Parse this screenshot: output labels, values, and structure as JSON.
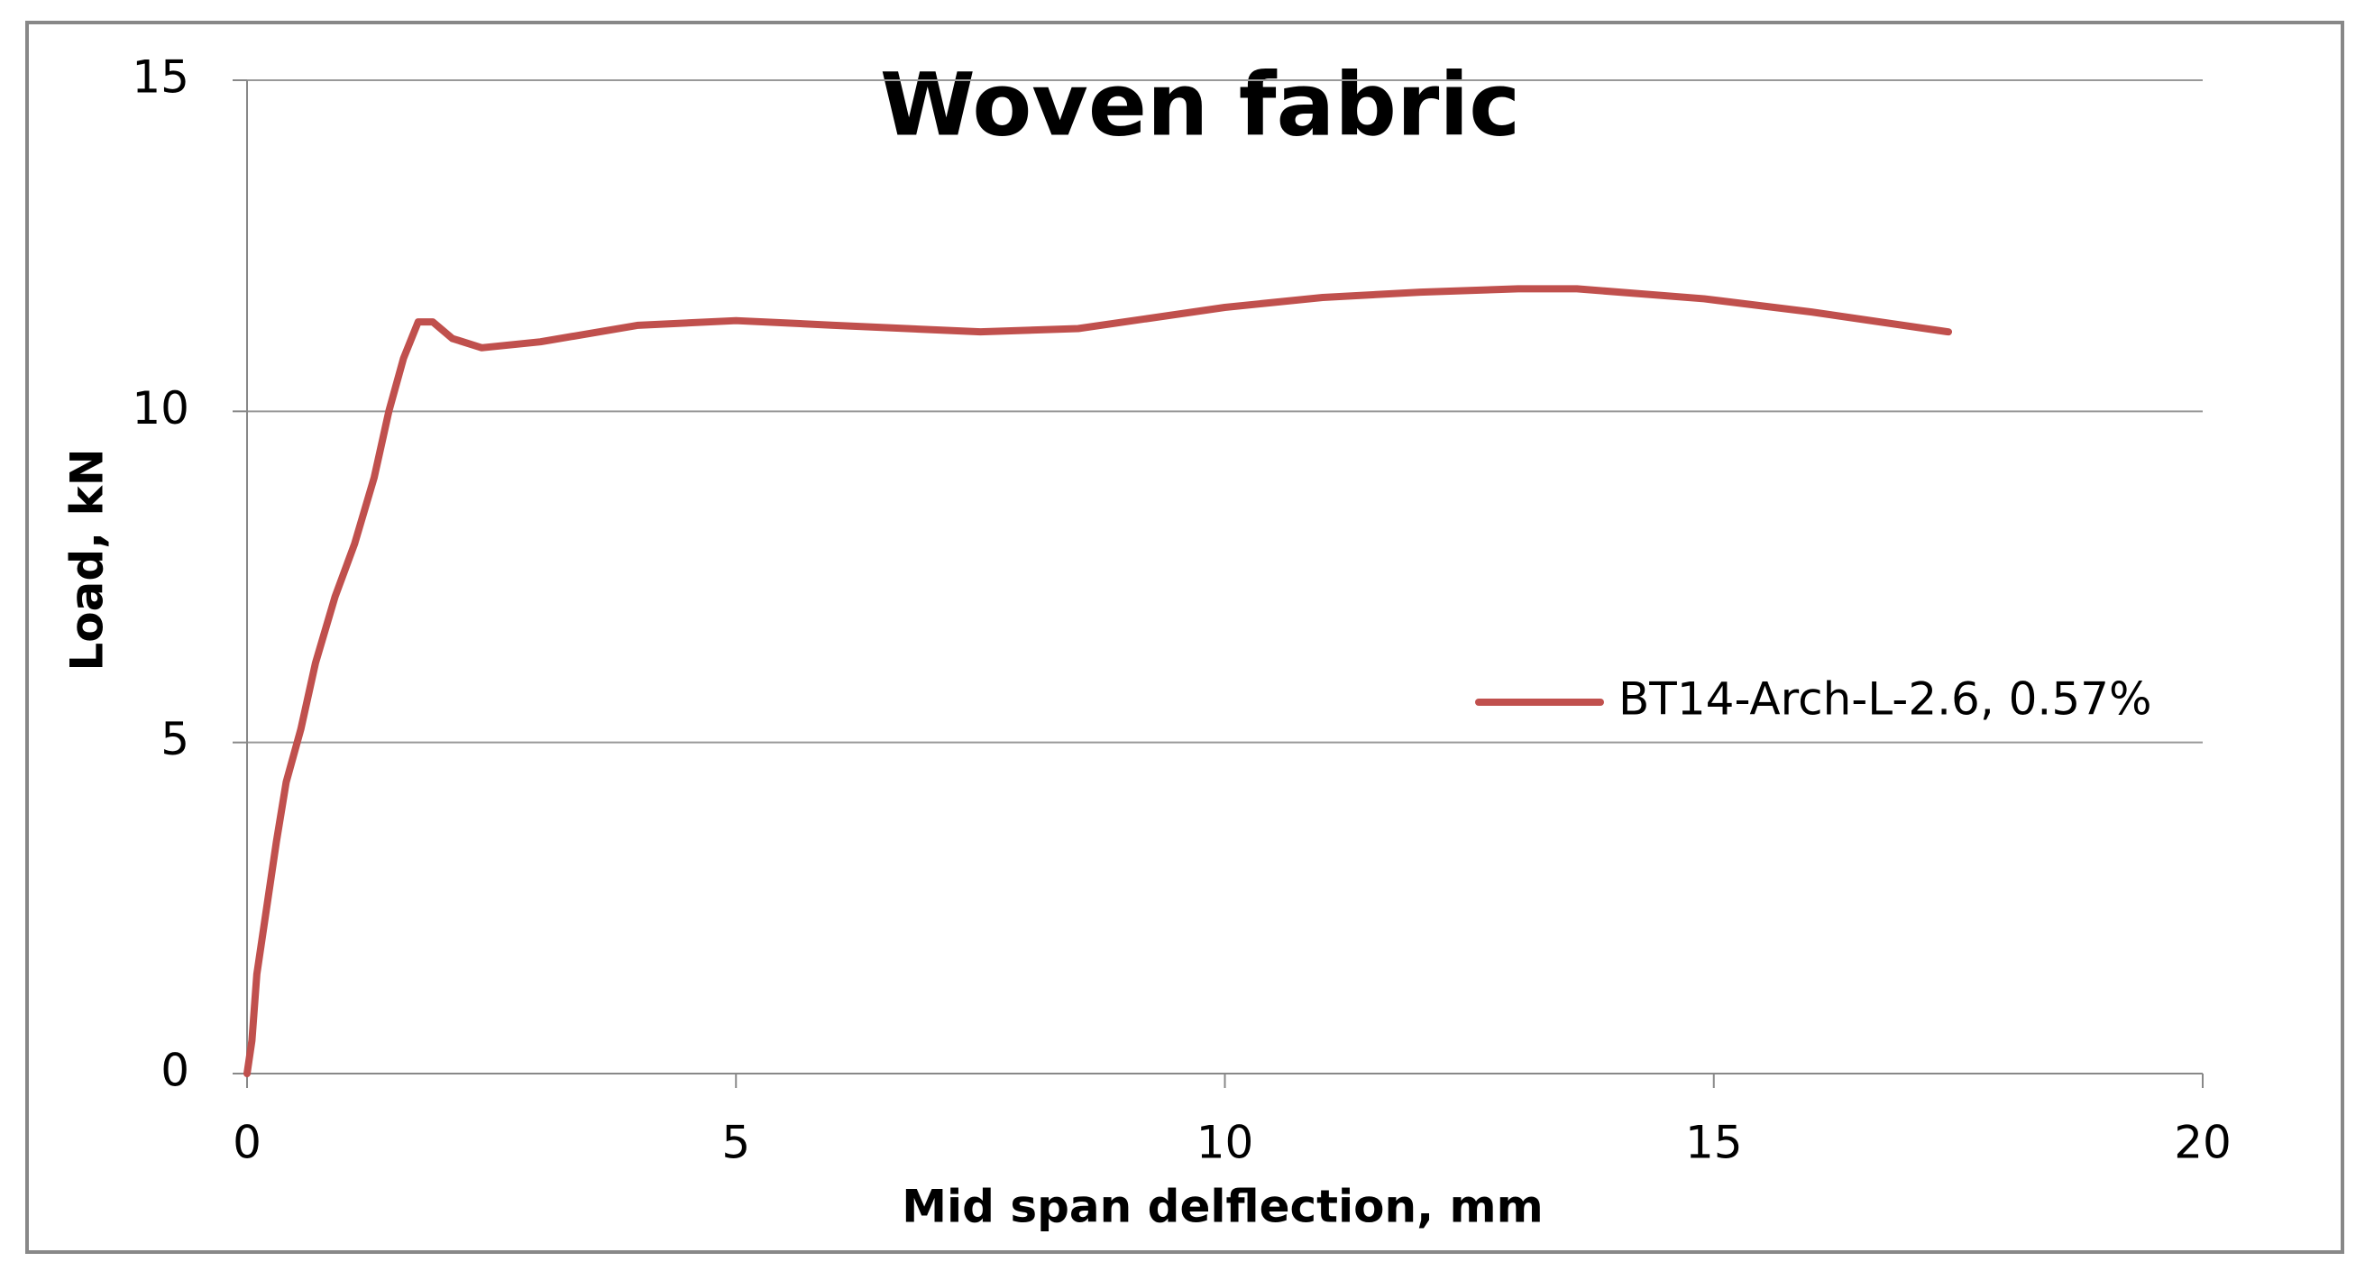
{
  "chart_data": {
    "type": "line",
    "title": "Woven fabric",
    "xlabel": "Mid span delflection, mm",
    "ylabel": "Load, kN",
    "series": [
      {
        "name": "BT14-Arch-L-2.6, 0.57%",
        "color": "#c0504d",
        "x": [
          0,
          0.05,
          0.1,
          0.2,
          0.3,
          0.4,
          0.55,
          0.7,
          0.9,
          1.1,
          1.3,
          1.45,
          1.6,
          1.75,
          1.9,
          2.1,
          2.4,
          3,
          4,
          5,
          6,
          7.5,
          8.5,
          10,
          11,
          12,
          13,
          13.6,
          14.9,
          16,
          17.4
        ],
        "values": [
          0,
          0.5,
          1.5,
          2.5,
          3.5,
          4.4,
          5.2,
          6.2,
          7.2,
          8.0,
          9.0,
          10.0,
          10.8,
          11.35,
          11.35,
          11.1,
          10.96,
          11.05,
          11.3,
          11.37,
          11.3,
          11.2,
          11.25,
          11.57,
          11.72,
          11.8,
          11.85,
          11.85,
          11.7,
          11.5,
          11.2
        ]
      }
    ],
    "xlim": [
      0,
      20
    ],
    "xticks": [
      0,
      5,
      10,
      15,
      20
    ],
    "ylim": [
      0,
      15
    ],
    "yticks": [
      0,
      5,
      10,
      15
    ],
    "grid": true,
    "legend": "right"
  }
}
